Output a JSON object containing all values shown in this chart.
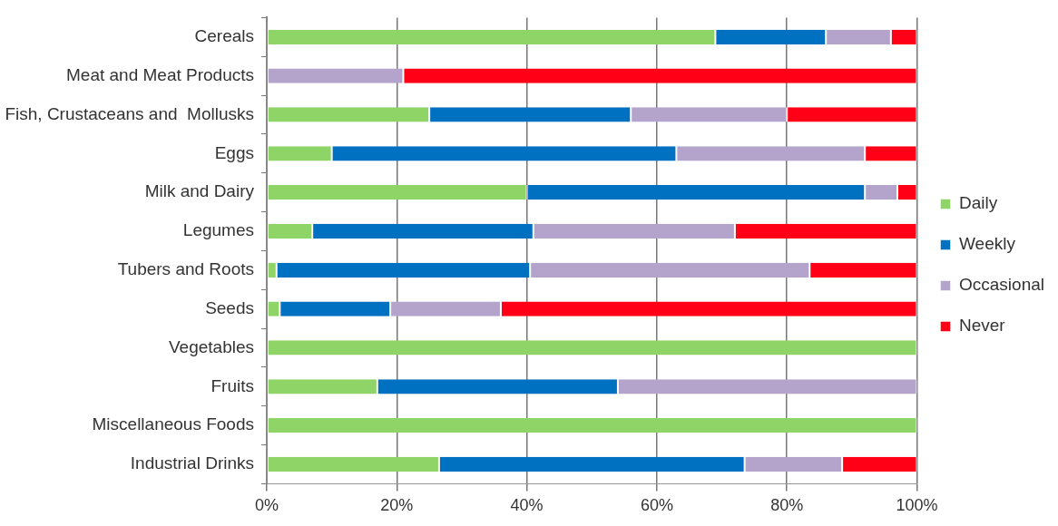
{
  "chart_data": {
    "type": "bar",
    "orientation": "horizontal",
    "stacked": true,
    "categories": [
      "Cereals",
      "Meat and Meat Products",
      "Fish, Crustaceans and  Mollusks",
      "Eggs",
      "Milk and Dairy",
      "Legumes",
      "Tubers and Roots",
      "Seeds",
      "Vegetables",
      "Fruits",
      "Miscellaneous Foods",
      "Industrial Drinks"
    ],
    "series": [
      {
        "name": "Daily",
        "color": "#8ed466",
        "values": [
          69,
          0,
          25,
          10,
          40,
          7,
          1.5,
          2,
          100,
          17,
          100,
          26.5
        ]
      },
      {
        "name": "Weekly",
        "color": "#0070c0",
        "values": [
          17,
          0,
          31,
          53,
          52,
          34,
          39,
          17,
          0,
          37,
          0,
          47
        ]
      },
      {
        "name": "Occasional",
        "color": "#b4a4cc",
        "values": [
          10,
          21,
          24,
          29,
          5,
          31,
          43,
          17,
          0,
          46,
          0,
          15
        ]
      },
      {
        "name": "Never",
        "color": "#ff0016",
        "values": [
          4,
          79,
          20,
          8,
          3,
          28,
          16.5,
          64,
          0,
          0,
          0,
          11.5
        ]
      }
    ],
    "xlim": [
      0,
      100
    ],
    "xticks": [
      {
        "value": 0,
        "label": "0%"
      },
      {
        "value": 20,
        "label": "20%"
      },
      {
        "value": 40,
        "label": "40%"
      },
      {
        "value": 60,
        "label": "60%"
      },
      {
        "value": 80,
        "label": "80%"
      },
      {
        "value": 100,
        "label": "100%"
      }
    ],
    "grid": "x",
    "legend": "right"
  }
}
